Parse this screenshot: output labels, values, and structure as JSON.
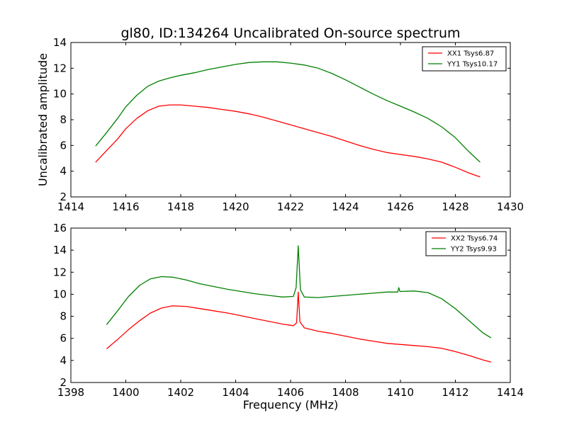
{
  "figure": {
    "title": "gl80, ID:134264 Uncalibrated On-source spectrum",
    "ylabel": "Uncalibrated amplitude",
    "xlabel": "Frequency (MHz)"
  },
  "colors": {
    "red": "#ff0000",
    "green": "#008000",
    "axis": "#000000"
  },
  "chart_data": [
    {
      "type": "line",
      "title": "gl80, ID:134264 Uncalibrated On-source spectrum",
      "xlabel": "",
      "ylabel": "Uncalibrated amplitude",
      "xlim": [
        1414,
        1430
      ],
      "ylim": [
        2,
        14
      ],
      "xticks": [
        1414,
        1416,
        1418,
        1420,
        1422,
        1424,
        1426,
        1428,
        1430
      ],
      "yticks": [
        2,
        4,
        6,
        8,
        10,
        12,
        14
      ],
      "legend_position": "top-right",
      "series": [
        {
          "name": "XX1 Tsys6.87",
          "color": "#ff0000",
          "x": [
            1414.9,
            1415.3,
            1415.7,
            1416.0,
            1416.4,
            1416.8,
            1417.2,
            1417.6,
            1418.0,
            1418.5,
            1419.0,
            1419.5,
            1420.0,
            1420.5,
            1421.0,
            1421.5,
            1422.0,
            1422.5,
            1423.0,
            1423.5,
            1424.0,
            1424.5,
            1425.0,
            1425.5,
            1426.0,
            1426.5,
            1427.0,
            1427.5,
            1428.0,
            1428.5,
            1428.9
          ],
          "y": [
            4.7,
            5.6,
            6.5,
            7.3,
            8.1,
            8.7,
            9.05,
            9.15,
            9.15,
            9.05,
            8.95,
            8.8,
            8.65,
            8.45,
            8.2,
            7.9,
            7.6,
            7.3,
            7.0,
            6.7,
            6.35,
            6.0,
            5.7,
            5.45,
            5.3,
            5.15,
            4.95,
            4.7,
            4.3,
            3.85,
            3.55
          ]
        },
        {
          "name": "YY1 Tsys10.17",
          "color": "#008000",
          "x": [
            1414.9,
            1415.3,
            1415.7,
            1416.0,
            1416.4,
            1416.8,
            1417.2,
            1417.6,
            1418.0,
            1418.5,
            1419.0,
            1419.5,
            1420.0,
            1420.5,
            1421.0,
            1421.5,
            1422.0,
            1422.5,
            1423.0,
            1423.5,
            1424.0,
            1424.5,
            1425.0,
            1425.5,
            1426.0,
            1426.5,
            1427.0,
            1427.5,
            1428.0,
            1428.5,
            1428.9
          ],
          "y": [
            5.95,
            7.0,
            8.1,
            9.0,
            9.9,
            10.6,
            11.0,
            11.25,
            11.45,
            11.65,
            11.9,
            12.1,
            12.3,
            12.45,
            12.5,
            12.5,
            12.4,
            12.25,
            12.0,
            11.6,
            11.1,
            10.55,
            10.0,
            9.5,
            9.05,
            8.6,
            8.1,
            7.45,
            6.6,
            5.5,
            4.7
          ]
        }
      ]
    },
    {
      "type": "line",
      "title": "",
      "xlabel": "Frequency (MHz)",
      "ylabel": "",
      "xlim": [
        1398,
        1414
      ],
      "ylim": [
        2,
        16
      ],
      "xticks": [
        1398,
        1400,
        1402,
        1404,
        1406,
        1408,
        1410,
        1412,
        1414
      ],
      "yticks": [
        2,
        4,
        6,
        8,
        10,
        12,
        14,
        16
      ],
      "legend_position": "top-right",
      "series": [
        {
          "name": "XX2 Tsys6.74",
          "color": "#ff0000",
          "x": [
            1399.3,
            1399.7,
            1400.1,
            1400.5,
            1400.9,
            1401.3,
            1401.7,
            1402.2,
            1402.7,
            1403.2,
            1403.7,
            1404.2,
            1404.7,
            1405.2,
            1405.7,
            1406.1,
            1406.22,
            1406.28,
            1406.34,
            1406.5,
            1407.0,
            1407.5,
            1408.0,
            1408.5,
            1409.0,
            1409.5,
            1410.0,
            1410.5,
            1411.0,
            1411.5,
            1412.0,
            1412.5,
            1413.0,
            1413.3
          ],
          "y": [
            5.05,
            5.9,
            6.8,
            7.6,
            8.3,
            8.75,
            8.95,
            8.9,
            8.7,
            8.5,
            8.3,
            8.05,
            7.8,
            7.55,
            7.3,
            7.15,
            7.4,
            10.2,
            7.5,
            6.95,
            6.65,
            6.45,
            6.2,
            5.95,
            5.75,
            5.55,
            5.45,
            5.35,
            5.25,
            5.1,
            4.8,
            4.45,
            4.05,
            3.85
          ]
        },
        {
          "name": "YY2 Tsys9.93",
          "color": "#008000",
          "x": [
            1399.3,
            1399.7,
            1400.1,
            1400.5,
            1400.9,
            1401.3,
            1401.7,
            1402.2,
            1402.7,
            1403.2,
            1403.7,
            1404.2,
            1404.7,
            1405.2,
            1405.7,
            1406.1,
            1406.2,
            1406.28,
            1406.36,
            1406.5,
            1407.0,
            1407.5,
            1408.0,
            1408.5,
            1409.0,
            1409.5,
            1409.9,
            1409.94,
            1409.98,
            1410.5,
            1411.0,
            1411.5,
            1412.0,
            1412.5,
            1413.0,
            1413.3
          ],
          "y": [
            7.25,
            8.5,
            9.8,
            10.8,
            11.4,
            11.6,
            11.55,
            11.3,
            10.95,
            10.7,
            10.45,
            10.25,
            10.05,
            9.9,
            9.75,
            9.8,
            10.6,
            14.4,
            10.4,
            9.75,
            9.7,
            9.8,
            9.9,
            10.0,
            10.1,
            10.2,
            10.2,
            10.6,
            10.25,
            10.3,
            10.15,
            9.6,
            8.7,
            7.6,
            6.5,
            6.05
          ]
        }
      ]
    }
  ]
}
